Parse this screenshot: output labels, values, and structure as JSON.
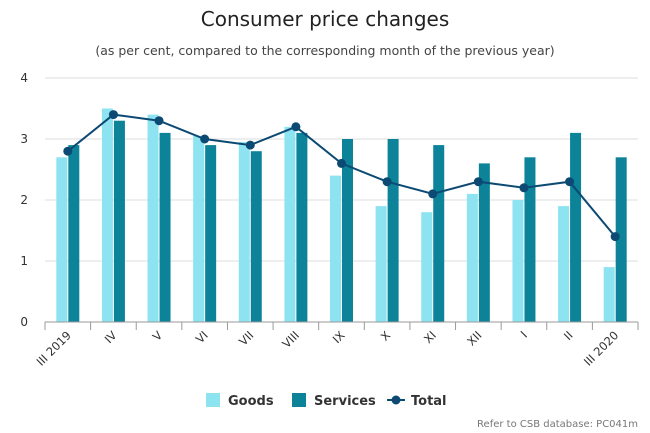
{
  "chart_data": {
    "type": "bar",
    "title": "Consumer price changes",
    "subtitle": "(as per cent, compared to the corresponding month of the previous year)",
    "categories": [
      "III 2019",
      "IV",
      "V",
      "VI",
      "VII",
      "VIII",
      "IX",
      "X",
      "XI",
      "XII",
      "I",
      "II",
      "III 2020"
    ],
    "ylim": [
      0,
      4
    ],
    "yticks": [
      0,
      1,
      2,
      3,
      4
    ],
    "grid": true,
    "legend_position": "bottom-center",
    "series": [
      {
        "name": "Goods",
        "kind": "bar",
        "color": "#8ee3f1",
        "values": [
          2.7,
          3.5,
          3.4,
          3.05,
          2.95,
          3.2,
          2.4,
          1.9,
          1.8,
          2.1,
          2.0,
          1.9,
          0.9
        ]
      },
      {
        "name": "Services",
        "kind": "bar",
        "color": "#0c8399",
        "values": [
          2.9,
          3.3,
          3.1,
          2.9,
          2.8,
          3.1,
          3.0,
          3.0,
          2.9,
          2.6,
          2.7,
          3.1,
          2.7
        ]
      },
      {
        "name": "Total",
        "kind": "line",
        "color": "#0c4a73",
        "values": [
          2.8,
          3.4,
          3.3,
          3.0,
          2.9,
          3.2,
          2.6,
          2.3,
          2.1,
          2.3,
          2.2,
          2.3,
          1.4
        ]
      }
    ],
    "credit": "Refer to CSB database: PC041m"
  }
}
